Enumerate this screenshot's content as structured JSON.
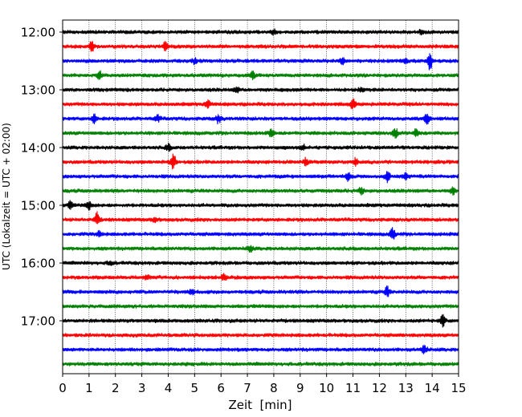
{
  "chart_data": {
    "type": "line",
    "title": "",
    "xlabel": "Zeit  [min]",
    "ylabel": "UTC (Lokalzeit = UTC + 02:00)",
    "xlim": [
      0,
      15
    ],
    "x_ticks": [
      "0",
      "1",
      "2",
      "3",
      "4",
      "5",
      "6",
      "7",
      "8",
      "9",
      "10",
      "11",
      "12",
      "13",
      "14",
      "15"
    ],
    "y_ticks": [
      "12:00",
      "13:00",
      "14:00",
      "15:00",
      "16:00",
      "17:00"
    ],
    "grid": "vertical dotted lines at each minute",
    "trace_interval_minutes": 15,
    "traces": [
      {
        "start": "12:00",
        "color": "#000000",
        "events": [
          {
            "t": 8.0,
            "a": 3
          },
          {
            "t": 13.6,
            "a": 3
          }
        ]
      },
      {
        "start": "12:15",
        "color": "#ff0000",
        "events": [
          {
            "t": 1.1,
            "a": 7
          },
          {
            "t": 3.9,
            "a": 6
          }
        ]
      },
      {
        "start": "12:30",
        "color": "#0000ff",
        "events": [
          {
            "t": 5.0,
            "a": 3
          },
          {
            "t": 10.6,
            "a": 4
          },
          {
            "t": 13.0,
            "a": 3
          },
          {
            "t": 13.9,
            "a": 12
          }
        ]
      },
      {
        "start": "12:45",
        "color": "#008000",
        "events": [
          {
            "t": 1.4,
            "a": 5
          },
          {
            "t": 7.2,
            "a": 4
          }
        ]
      },
      {
        "start": "13:00",
        "color": "#000000",
        "events": [
          {
            "t": 6.6,
            "a": 3
          },
          {
            "t": 11.3,
            "a": 3
          }
        ]
      },
      {
        "start": "13:15",
        "color": "#ff0000",
        "events": [
          {
            "t": 5.5,
            "a": 5
          },
          {
            "t": 11.0,
            "a": 6
          }
        ]
      },
      {
        "start": "13:30",
        "color": "#0000ff",
        "events": [
          {
            "t": 1.2,
            "a": 5
          },
          {
            "t": 3.6,
            "a": 4
          },
          {
            "t": 5.9,
            "a": 5
          },
          {
            "t": 13.8,
            "a": 6
          }
        ]
      },
      {
        "start": "13:45",
        "color": "#008000",
        "events": [
          {
            "t": 7.9,
            "a": 4
          },
          {
            "t": 12.6,
            "a": 6
          },
          {
            "t": 13.4,
            "a": 5
          }
        ]
      },
      {
        "start": "14:00",
        "color": "#000000",
        "events": [
          {
            "t": 4.0,
            "a": 4
          },
          {
            "t": 9.1,
            "a": 3
          }
        ]
      },
      {
        "start": "14:15",
        "color": "#ff0000",
        "events": [
          {
            "t": 4.2,
            "a": 9
          },
          {
            "t": 9.2,
            "a": 4
          },
          {
            "t": 11.1,
            "a": 4
          }
        ]
      },
      {
        "start": "14:30",
        "color": "#0000ff",
        "events": [
          {
            "t": 10.8,
            "a": 5
          },
          {
            "t": 12.3,
            "a": 6
          },
          {
            "t": 13.0,
            "a": 4
          }
        ]
      },
      {
        "start": "14:45",
        "color": "#008000",
        "events": [
          {
            "t": 11.3,
            "a": 4
          },
          {
            "t": 14.8,
            "a": 4
          }
        ]
      },
      {
        "start": "15:00",
        "color": "#000000",
        "events": [
          {
            "t": 1.0,
            "a": 5
          },
          {
            "t": 0.3,
            "a": 4
          }
        ]
      },
      {
        "start": "15:15",
        "color": "#ff0000",
        "events": [
          {
            "t": 1.3,
            "a": 8
          },
          {
            "t": 3.5,
            "a": 3
          }
        ]
      },
      {
        "start": "15:30",
        "color": "#0000ff",
        "events": [
          {
            "t": 1.4,
            "a": 3
          },
          {
            "t": 12.5,
            "a": 7
          }
        ]
      },
      {
        "start": "15:45",
        "color": "#008000",
        "events": [
          {
            "t": 7.1,
            "a": 4
          }
        ]
      },
      {
        "start": "16:00",
        "color": "#000000",
        "events": [
          {
            "t": 1.8,
            "a": 3
          }
        ]
      },
      {
        "start": "16:15",
        "color": "#ff0000",
        "events": [
          {
            "t": 3.2,
            "a": 3
          },
          {
            "t": 6.1,
            "a": 3
          }
        ]
      },
      {
        "start": "16:30",
        "color": "#0000ff",
        "events": [
          {
            "t": 4.9,
            "a": 3
          },
          {
            "t": 12.3,
            "a": 6
          }
        ]
      },
      {
        "start": "16:45",
        "color": "#008000",
        "events": []
      },
      {
        "start": "17:00",
        "color": "#000000",
        "events": [
          {
            "t": 14.4,
            "a": 7
          }
        ]
      },
      {
        "start": "17:15",
        "color": "#ff0000",
        "events": []
      },
      {
        "start": "17:30",
        "color": "#0000ff",
        "events": [
          {
            "t": 13.7,
            "a": 6
          }
        ]
      },
      {
        "start": "17:45",
        "color": "#008000",
        "events": []
      }
    ]
  }
}
